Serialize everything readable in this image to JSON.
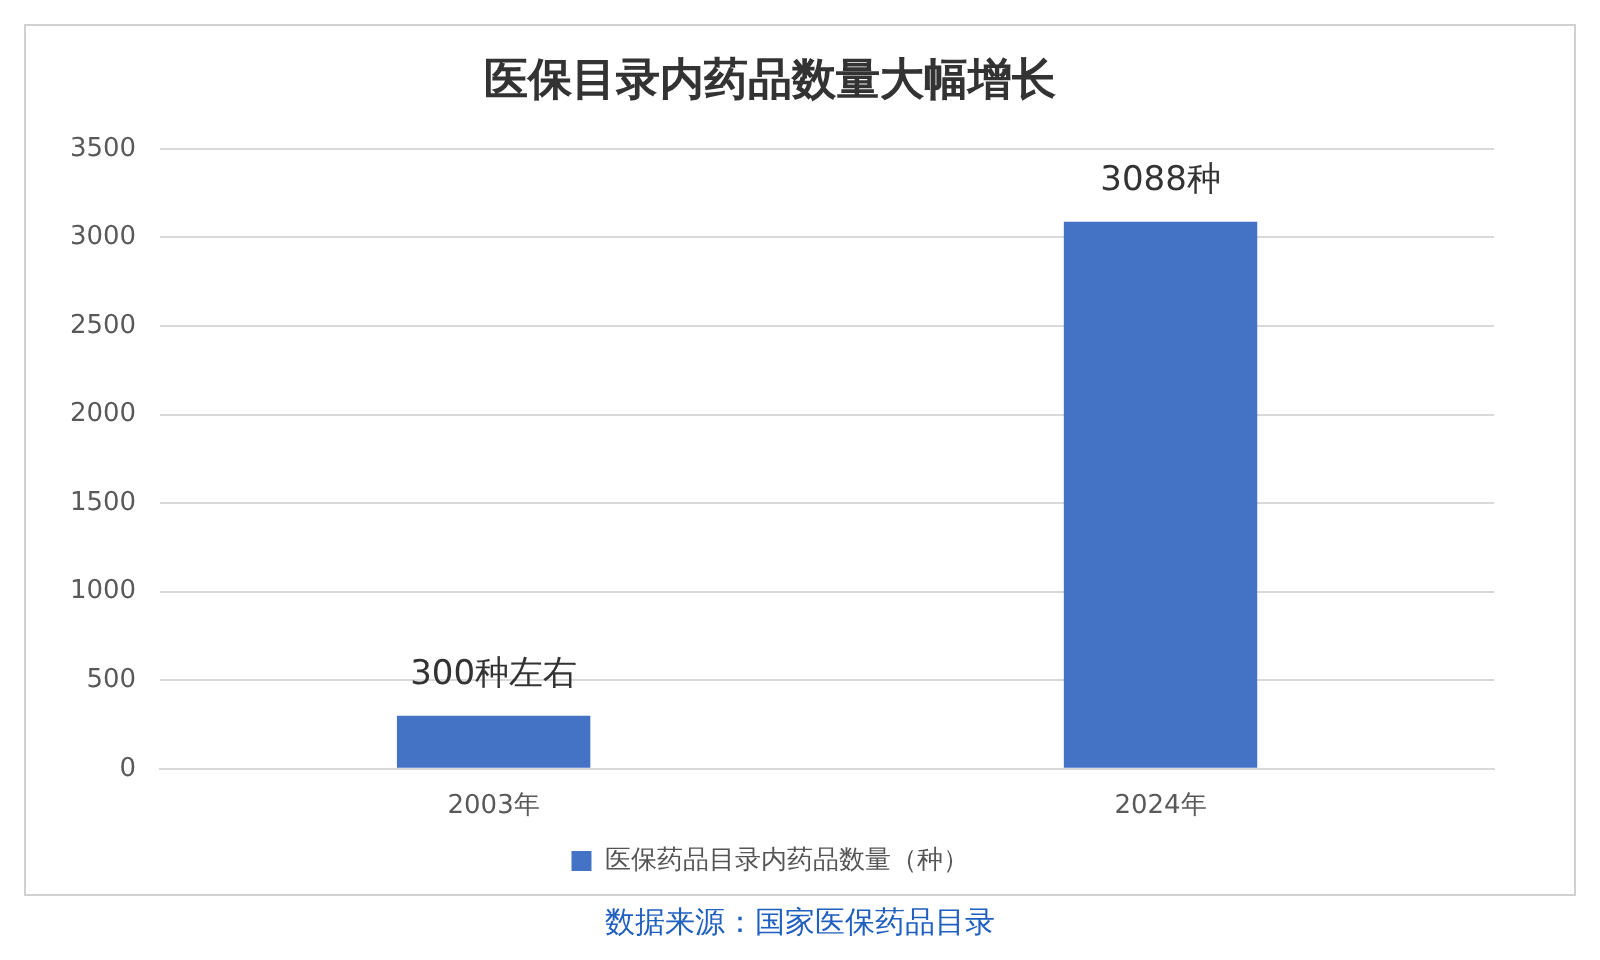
{
  "chart_data": {
    "type": "bar",
    "title": "医保目录内药品数量大幅增长",
    "categories": [
      "2003年",
      "2024年"
    ],
    "series": [
      {
        "name": "医保药品目录内药品数量（种）",
        "color": "#4472c4",
        "values": [
          300,
          3088
        ],
        "value_labels": [
          "300种左右",
          "3088种"
        ]
      }
    ],
    "ylim": [
      0,
      3500
    ],
    "yticks": [
      0,
      500,
      1000,
      1500,
      2000,
      2500,
      3000,
      3500
    ],
    "grid": "y",
    "legend": "bottom",
    "annotations": [
      "数据来源：国家医保药品目录"
    ]
  }
}
